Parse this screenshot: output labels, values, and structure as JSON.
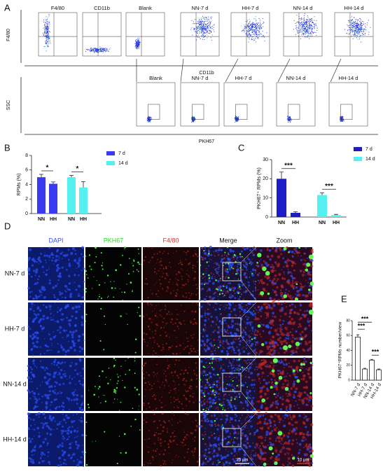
{
  "panel_labels": [
    "A",
    "B",
    "C",
    "D",
    "E"
  ],
  "flow": {
    "row1": {
      "y_label": "F4/80",
      "x_label": "CD11b",
      "titles": [
        "F4/80",
        "CD11b",
        "Blank",
        "NN-7 d",
        "HH-7 d",
        "NN-14 d",
        "HH-14 d"
      ]
    },
    "row2": {
      "y_label": "SSC",
      "x_label": "PKH67",
      "titles": [
        "Blank",
        "NN-7 d",
        "HH-7 d",
        "NN-14 d",
        "HH-14 d"
      ]
    }
  },
  "chart_b": {
    "type": "bar",
    "y_label": "RPMs (%)",
    "categories": [
      "NN",
      "HH"
    ],
    "ylim": [
      0,
      8
    ],
    "yticks": [
      0,
      2,
      4,
      6,
      8
    ],
    "series": [
      {
        "name": "7 d",
        "color": "#3a3af0",
        "values": [
          5.0,
          4.1
        ],
        "errors": [
          0.4,
          0.25
        ]
      },
      {
        "name": "14 d",
        "color": "#55f0f0",
        "values": [
          5.0,
          3.6
        ],
        "errors": [
          0.25,
          0.8
        ]
      }
    ],
    "significance": [
      "*",
      "*"
    ]
  },
  "chart_c": {
    "type": "bar",
    "y_label": "PKH67⁺ RPMs (%)",
    "categories": [
      "NN",
      "HH"
    ],
    "ylim": [
      0,
      30
    ],
    "yticks": [
      0,
      10,
      20,
      30
    ],
    "series": [
      {
        "name": "7 d",
        "color": "#1c1cc8",
        "values": [
          20,
          2.2
        ],
        "errors": [
          3.5,
          0.6
        ]
      },
      {
        "name": "14 d",
        "color": "#55f0f0",
        "values": [
          11.5,
          1.0
        ],
        "errors": [
          1.2,
          0.4
        ]
      }
    ],
    "significance": [
      "***",
      "***"
    ]
  },
  "microscopy": {
    "columns": [
      "DAPI",
      "PKH67",
      "F4/80",
      "Merge",
      "Zoom"
    ],
    "rows": [
      "NN-7 d",
      "HH-7 d",
      "NN-14 d",
      "HH-14 d"
    ],
    "scale_bars": [
      "25 μm",
      "10 μm"
    ]
  },
  "chart_e": {
    "type": "bar",
    "y_label": "PKH67⁺RPMs number/view",
    "categories": [
      "NN-7 d",
      "HH-7 d",
      "NN-14 d",
      "HH-14 d"
    ],
    "ylim": [
      0,
      80
    ],
    "yticks": [
      0,
      20,
      40,
      60,
      80
    ],
    "values": [
      58,
      15,
      27,
      14
    ],
    "errors": [
      3,
      1,
      1,
      1
    ],
    "significance": [
      "***",
      "***",
      "***"
    ]
  }
}
